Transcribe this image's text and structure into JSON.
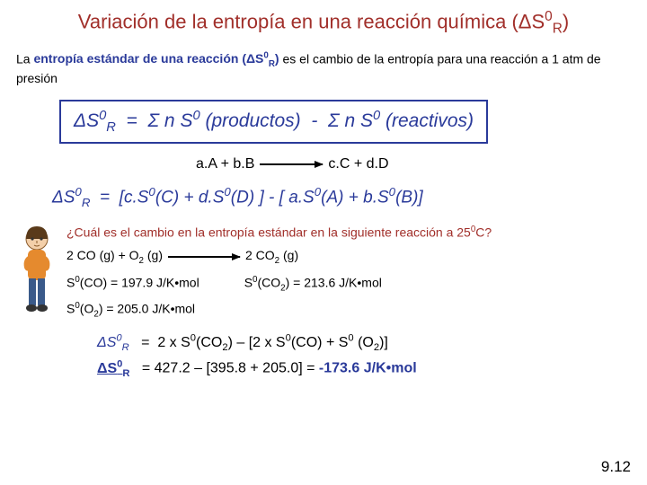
{
  "title_html": "Variación de la entropía en una reacción química (&Delta;S<sup>0</sup><sub>R</sub>)",
  "intro_pre": "La ",
  "intro_bold_html": "entropía estándar de una reacción (&Delta;S<sup>0</sup><sub>R</sub>)",
  "intro_post": " es el cambio de la entropía para una reacción a 1 atm de presión",
  "formula_box_html": "&Delta;S<sup>0</sup><sub>R</sub> &nbsp;=&nbsp; &Sigma; <i>n</i> S<sup>0</sup> (productos) &nbsp;-&nbsp; &Sigma; <i>n</i> S<sup>0</sup> (reactivos)",
  "reaction_left": "a.A + b.B",
  "reaction_right": "c.C + d.D",
  "balance_html": "&Delta;S<sup>0</sup><sub>R</sub> &nbsp;=&nbsp; [<i>c.</i>S<sup>0</sup>(C) + <i>d.</i>S<sup>0</sup>(D) ] - [ <i>a.</i>S<sup>0</sup>(A) + <i>b.</i>S<sup>0</sup>(B)]",
  "question_html": "¿Cuál es el cambio en la entropía estándar en la siguiente reacción a 25<sup>0</sup>C?",
  "rxn2_left_html": "2 CO (g) + O<sub>2</sub> (g)",
  "rxn2_right_html": "2 CO<sub>2</sub> (g)",
  "sCO_html": "S<sup>0</sup>(CO) = 197.9 J/K&bull;mol",
  "sCO2_html": "S<sup>0</sup>(CO<sub>2</sub>) = 213.6 J/K&bull;mol",
  "sO2_html": "S<sup>0</sup>(O<sub>2</sub>) = 205.0 J/K&bull;mol",
  "result1_label_html": "&Delta;S<sup>0</sup><sub>R</sub>",
  "result1_rhs_html": "= &nbsp;2 x S<sup>0</sup>(CO<sub>2</sub>) &ndash; [2 x S<sup>0</sup>(CO) + S<sup>0</sup> (O<sub>2</sub>)]",
  "result2_rhs_pre": "= 427.2 – [395.8 + 205.0] = ",
  "result2_value": "-173.6 J/K•mol",
  "pageno": "9.12"
}
